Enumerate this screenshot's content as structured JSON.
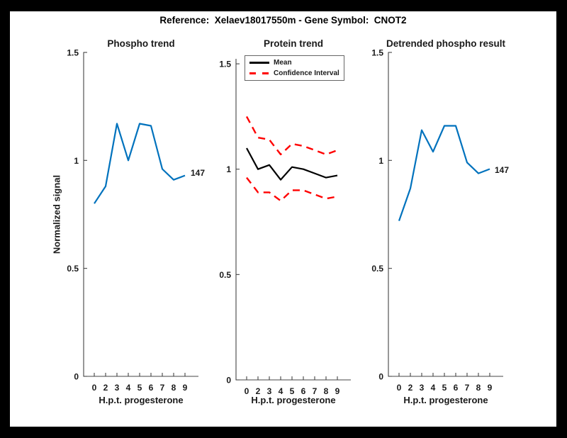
{
  "figure_title": "Reference:  Xelaev18017550m - Gene Symbol:  CNOT2",
  "colors": {
    "signal_blue": "#0072BD",
    "ci_red": "#ff0000",
    "mean_black": "#000000",
    "axis": "#444444",
    "frame": "#000000",
    "background": "#ffffff"
  },
  "chart_data": [
    {
      "type": "line",
      "title": "Phospho trend",
      "xlabel": "H.p.t. progesterone",
      "ylabel": "Normalized signal",
      "x": [
        0,
        2,
        3,
        4,
        5,
        6,
        7,
        8,
        9
      ],
      "x_tick_labels": [
        "0",
        "2",
        "3",
        "4",
        "5",
        "6",
        "7",
        "8",
        "9"
      ],
      "y_tick_values": [
        0,
        0.5,
        1,
        1.5
      ],
      "y_tick_labels": [
        "0",
        "0.5",
        "1",
        "1.5"
      ],
      "ylim": [
        0,
        1.5
      ],
      "grid": false,
      "end_label": "147",
      "series": [
        {
          "name": "phospho-signal",
          "color": "#0072BD",
          "style": "solid",
          "values": [
            0.8,
            0.88,
            1.17,
            1.0,
            1.17,
            1.16,
            0.96,
            0.91,
            0.93
          ]
        }
      ]
    },
    {
      "type": "line",
      "title": "Protein trend",
      "xlabel": "H.p.t. progesterone",
      "x": [
        0,
        2,
        3,
        4,
        5,
        6,
        7,
        8,
        9
      ],
      "x_tick_labels": [
        "0",
        "2",
        "3",
        "4",
        "5",
        "6",
        "7",
        "8",
        "9"
      ],
      "y_tick_values": [
        0,
        0.5,
        1,
        1.5
      ],
      "y_tick_labels": [
        "0",
        "0.5",
        "1",
        "1.5"
      ],
      "ylim": [
        0,
        1.52
      ],
      "grid": false,
      "legend": [
        {
          "label": "Mean",
          "color": "#000000",
          "style": "solid"
        },
        {
          "label": "Confidence Interval",
          "color": "#ff0000",
          "style": "dashed"
        }
      ],
      "series": [
        {
          "name": "mean",
          "color": "#000000",
          "style": "solid",
          "values": [
            1.1,
            1.0,
            1.02,
            0.95,
            1.01,
            1.0,
            0.98,
            0.96,
            0.97
          ]
        },
        {
          "name": "confidence-interval-upper",
          "color": "#ff0000",
          "style": "dashed",
          "values": [
            1.25,
            1.15,
            1.14,
            1.07,
            1.12,
            1.11,
            1.09,
            1.07,
            1.09
          ]
        },
        {
          "name": "confidence-interval-lower",
          "color": "#ff0000",
          "style": "dashed",
          "values": [
            0.96,
            0.89,
            0.89,
            0.85,
            0.9,
            0.9,
            0.88,
            0.86,
            0.87
          ]
        }
      ]
    },
    {
      "type": "line",
      "title": "Detrended phospho result",
      "xlabel": "H.p.t. progesterone",
      "x": [
        0,
        2,
        3,
        4,
        5,
        6,
        7,
        8,
        9
      ],
      "x_tick_labels": [
        "0",
        "2",
        "3",
        "4",
        "5",
        "6",
        "7",
        "8",
        "9"
      ],
      "y_tick_values": [
        0,
        0.5,
        1,
        1.5
      ],
      "y_tick_labels": [
        "0",
        "0.5",
        "1",
        "1.5"
      ],
      "ylim": [
        0,
        1.5
      ],
      "grid": false,
      "end_label": "147",
      "series": [
        {
          "name": "detrended-phospho-signal",
          "color": "#0072BD",
          "style": "solid",
          "values": [
            0.72,
            0.87,
            1.14,
            1.04,
            1.16,
            1.16,
            0.99,
            0.94,
            0.96
          ]
        }
      ]
    }
  ]
}
